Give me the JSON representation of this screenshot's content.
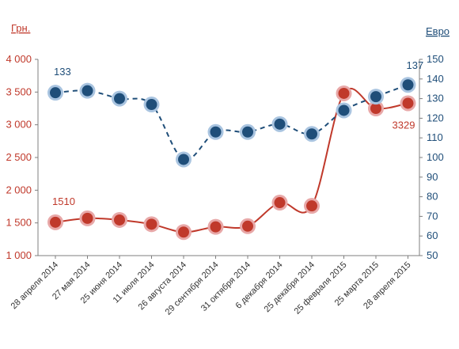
{
  "chart_data": {
    "type": "line",
    "categories": [
      "28 апреля 2014",
      "27 мая 2014",
      "25 июня 2014",
      "11 июля 2014",
      "26 августа 2014",
      "29 сентября 2014",
      "31 октября 2014",
      "6 декабря 2014",
      "25 декабря 2014",
      "25 февраля 2015",
      "25 марта 2015",
      "28 апреля 2015"
    ],
    "left_axis": {
      "unit_label": "Грн.",
      "ylim": [
        1000,
        4000
      ],
      "ticks": [
        "1 000",
        "1 500",
        "2 000",
        "2 500",
        "3 000",
        "3 500",
        "4 000"
      ]
    },
    "right_axis": {
      "unit_label": "Евро",
      "ylim": [
        50,
        150
      ],
      "ticks": [
        "50",
        "60",
        "70",
        "80",
        "90",
        "100",
        "110",
        "120",
        "130",
        "140",
        "150"
      ]
    },
    "series": [
      {
        "axis": "left",
        "color": "#c0392b",
        "line_style": "solid",
        "values": [
          1510,
          1570,
          1545,
          1480,
          1360,
          1440,
          1450,
          1810,
          1760,
          3480,
          3250,
          3329
        ]
      },
      {
        "axis": "right",
        "color": "#1f4e79",
        "line_style": "dashed",
        "values": [
          133,
          134,
          130,
          127,
          99,
          113,
          113,
          117,
          112,
          124,
          131,
          137
        ]
      }
    ],
    "data_labels": [
      {
        "series": 0,
        "index": 0,
        "text": "1510"
      },
      {
        "series": 0,
        "index": 11,
        "text": "3329"
      },
      {
        "series": 1,
        "index": 0,
        "text": "133"
      },
      {
        "series": 1,
        "index": 11,
        "text": "137"
      }
    ],
    "grid": false,
    "legend": "none"
  }
}
